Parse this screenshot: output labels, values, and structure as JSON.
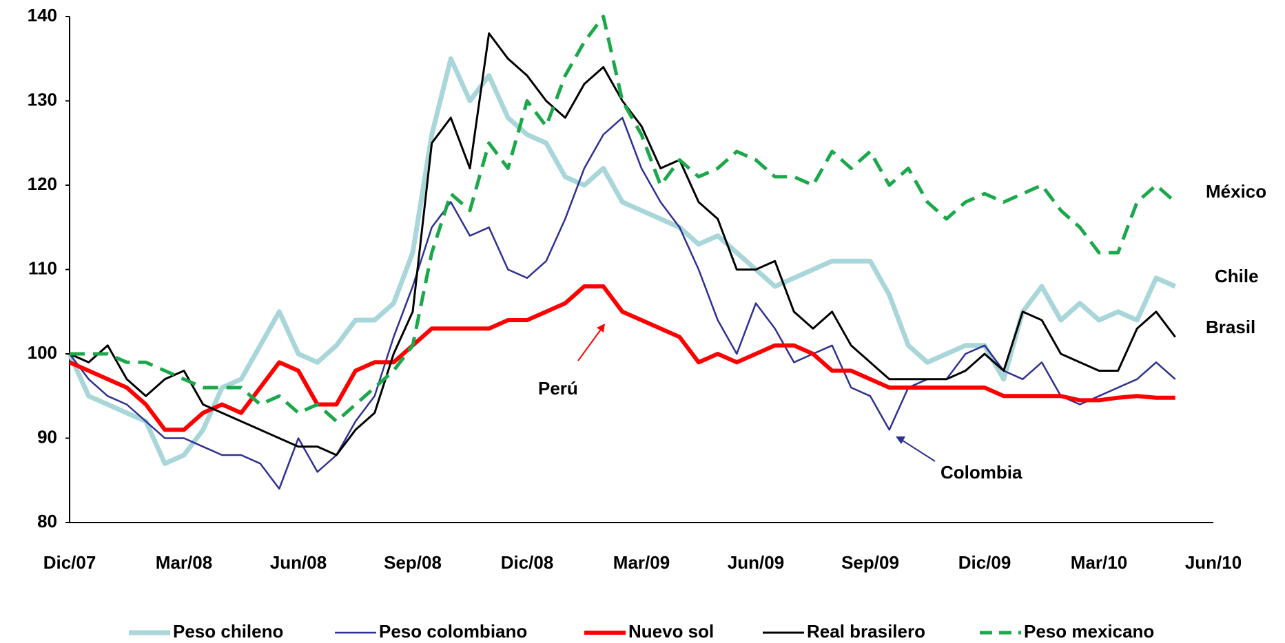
{
  "chart_data": {
    "type": "line",
    "categories": [
      "Dic/07",
      null,
      null,
      null,
      null,
      null,
      "Mar/08",
      null,
      null,
      null,
      null,
      null,
      "Jun/08",
      null,
      null,
      null,
      null,
      null,
      "Sep/08",
      null,
      null,
      null,
      null,
      null,
      "Dic/08",
      null,
      null,
      null,
      null,
      null,
      "Mar/09",
      null,
      null,
      null,
      null,
      null,
      "Jun/09",
      null,
      null,
      null,
      null,
      null,
      "Sep/09",
      null,
      null,
      null,
      null,
      null,
      "Dic/09",
      null,
      null,
      null,
      null,
      null,
      "Mar/10",
      null,
      null,
      null,
      null,
      null,
      "Jun/10"
    ],
    "ylim": [
      80,
      140
    ],
    "yticks": [
      80,
      90,
      100,
      110,
      120,
      130,
      140
    ],
    "legend": "bottom",
    "series": [
      {
        "name": "Peso chileno",
        "color": "#a9d6d9",
        "values": [
          100,
          95,
          94,
          93,
          92,
          87,
          88,
          91,
          96,
          97,
          101,
          105,
          100,
          99,
          101,
          104,
          104,
          106,
          112,
          126,
          135,
          130,
          133,
          128,
          126,
          125,
          121,
          120,
          122,
          118,
          117,
          116,
          115,
          113,
          114,
          112,
          110,
          108,
          109,
          110,
          111,
          111,
          111,
          107,
          101,
          99,
          100,
          101,
          101,
          97,
          105,
          108,
          104,
          106,
          104,
          105,
          104,
          109,
          108,
          null,
          null
        ]
      },
      {
        "name": "Peso colombiano",
        "color": "#2e3192",
        "values": [
          100,
          97,
          95,
          94,
          92,
          90,
          90,
          89,
          88,
          88,
          87,
          84,
          90,
          86,
          88,
          92,
          95,
          102,
          108,
          115,
          118,
          114,
          115,
          110,
          109,
          111,
          116,
          122,
          126,
          128,
          122,
          118,
          115,
          110,
          104,
          100,
          106,
          103,
          99,
          100,
          101,
          96,
          95,
          91,
          96,
          97,
          97,
          100,
          101,
          98,
          97,
          99,
          95,
          94,
          95,
          96,
          97,
          99,
          97,
          null,
          null
        ]
      },
      {
        "name": "Nuevo sol",
        "color": "#ff0000",
        "values": [
          99,
          98,
          97,
          96,
          94,
          91,
          91,
          93,
          94,
          93,
          96,
          99,
          98,
          94,
          94,
          98,
          99,
          99,
          101,
          103,
          103,
          103,
          103,
          104,
          104,
          105,
          106,
          108,
          108,
          105,
          104,
          103,
          102,
          99,
          100,
          99,
          100,
          101,
          101,
          100,
          98,
          98,
          97,
          96,
          96,
          96,
          96,
          96,
          96,
          95,
          95,
          95,
          95,
          94.5,
          94.5,
          94.8,
          95,
          94.8,
          94.8,
          null,
          null
        ]
      },
      {
        "name": "Real brasilero",
        "color": "#000000",
        "values": [
          100,
          99,
          101,
          97,
          95,
          97,
          98,
          94,
          93,
          92,
          91,
          90,
          89,
          89,
          88,
          91,
          93,
          100,
          105,
          125,
          128,
          122,
          138,
          135,
          133,
          130,
          128,
          132,
          134,
          130,
          127,
          122,
          123,
          118,
          116,
          110,
          110,
          111,
          105,
          103,
          105,
          101,
          99,
          97,
          97,
          97,
          97,
          98,
          100,
          98,
          105,
          104,
          100,
          99,
          98,
          98,
          103,
          105,
          102,
          null,
          null
        ]
      },
      {
        "name": "Peso mexicano",
        "color": "#1aa84a",
        "line_style": "dashed",
        "values": [
          100,
          100,
          100,
          99,
          99,
          98,
          97,
          96,
          96,
          96,
          94,
          95,
          93,
          94,
          92,
          94,
          96,
          98,
          101,
          112,
          119,
          117,
          125,
          122,
          130,
          127,
          133,
          137,
          140,
          130,
          126,
          120,
          123,
          121,
          122,
          124,
          123,
          121,
          121,
          120,
          124,
          122,
          124,
          120,
          122,
          118,
          116,
          118,
          119,
          118,
          119,
          120,
          117,
          115,
          112,
          112,
          118,
          120,
          118,
          null,
          null
        ]
      }
    ],
    "annotations": [
      "México",
      "Chile",
      "Brasil",
      "Perú",
      "Colombia"
    ]
  }
}
